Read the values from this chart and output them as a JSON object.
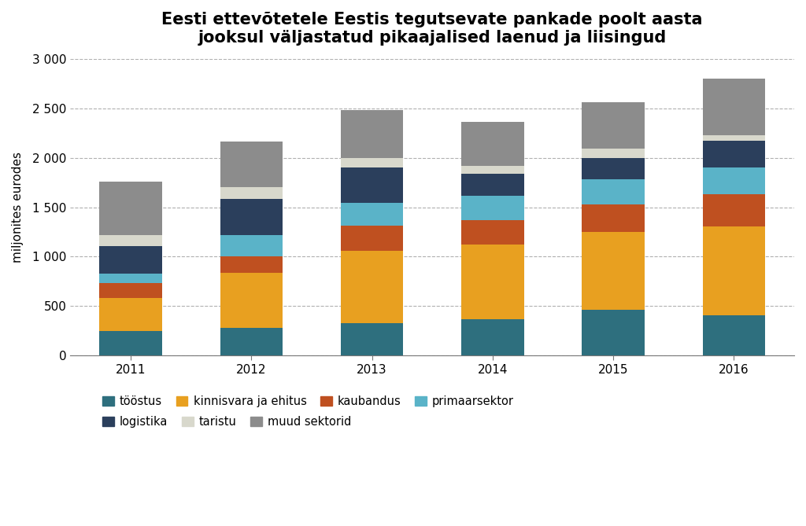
{
  "title": "Eesti ettevõtetele Eestis tegutsevate pankade poolt aasta\njooksul väljastatud pikaajalised laenud ja liisingud",
  "ylabel": "miljonites eurodes",
  "years": [
    "2011",
    "2012",
    "2013",
    "2014",
    "2015",
    "2016"
  ],
  "segments": {
    "tööstus": [
      250,
      280,
      330,
      370,
      460,
      410
    ],
    "kinnisvara ja ehitus": [
      330,
      555,
      730,
      755,
      790,
      895
    ],
    "kaubandus": [
      155,
      165,
      255,
      245,
      280,
      330
    ],
    "primaarsektor": [
      90,
      215,
      230,
      245,
      250,
      265
    ],
    "logistika": [
      280,
      370,
      360,
      220,
      220,
      270
    ],
    "taristu": [
      110,
      115,
      90,
      80,
      90,
      55
    ],
    "muud sektorid": [
      545,
      465,
      490,
      445,
      470,
      580
    ]
  },
  "colors": {
    "tööstus": "#2e6f7e",
    "kinnisvara ja ehitus": "#e8a020",
    "kaubandus": "#bf5020",
    "primaarsektor": "#5ab3c8",
    "logistika": "#2b3f5c",
    "taristu": "#d8d8cc",
    "muud sektorid": "#8c8c8c"
  },
  "ylim": [
    0,
    3000
  ],
  "yticks": [
    0,
    500,
    1000,
    1500,
    2000,
    2500,
    3000
  ],
  "ytick_labels": [
    "0",
    "500",
    "1 000",
    "1 500",
    "2 000",
    "2 500",
    "3 000"
  ],
  "bar_width": 0.52,
  "title_fontsize": 15,
  "axis_fontsize": 11,
  "legend_fontsize": 10.5,
  "background_color": "#ffffff",
  "grid_color": "#b0b0b0",
  "legend_row1": [
    "tööstus",
    "kinnisvara ja ehitus",
    "kaubandus",
    "primaarsektor"
  ],
  "legend_row2": [
    "logistika",
    "taristu",
    "muud sektorid"
  ]
}
